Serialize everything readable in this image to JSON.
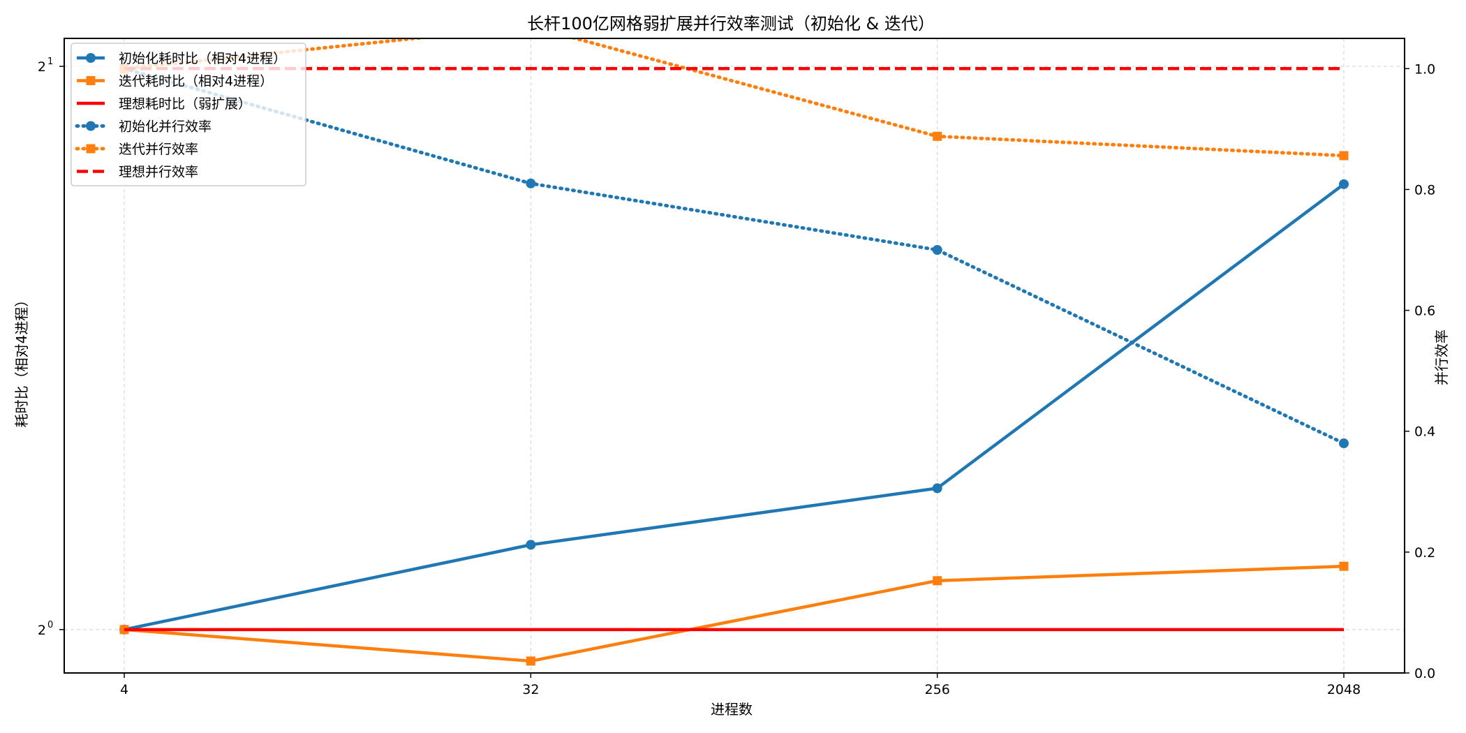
{
  "chart_data": {
    "type": "line",
    "title": "长杆100亿网格弱扩展并行效率测试（初始化 & 迭代）",
    "xlabel": "进程数",
    "ylabel_left": "耗时比（相对4进程）",
    "ylabel_right": "并行效率",
    "x": [
      4,
      32,
      256,
      2048
    ],
    "x_tick_labels": [
      "4",
      "32",
      "256",
      "2048"
    ],
    "x_scale": "log2",
    "y_left_scale": "log2",
    "y_left_range": [
      0.948,
      2.07
    ],
    "y_left_tick_labels": [
      {
        "value": 1,
        "base": "2",
        "exp": "0"
      },
      {
        "value": 2,
        "base": "2",
        "exp": "1"
      }
    ],
    "y_right_range": [
      0.0,
      1.05
    ],
    "y_right_ticks": [
      "0.0",
      "0.2",
      "0.4",
      "0.6",
      "0.8",
      "1.0"
    ],
    "grid": true,
    "legend_position": "top-left",
    "series": [
      {
        "name": "初始化耗时比（相对4进程）",
        "axis": "left",
        "values": [
          1.0,
          1.11,
          1.19,
          1.73
        ],
        "color": "#1f77b4",
        "line": "solid",
        "marker": "circle"
      },
      {
        "name": "迭代耗时比（相对4进程）",
        "axis": "left",
        "values": [
          1.0,
          0.962,
          1.062,
          1.081
        ],
        "color": "#ff7f0e",
        "line": "solid",
        "marker": "square"
      },
      {
        "name": "理想耗时比（弱扩展）",
        "axis": "left",
        "values": [
          1.0,
          1.0,
          1.0,
          1.0
        ],
        "color": "#ff0000",
        "line": "solid",
        "marker": "none"
      },
      {
        "name": "初始化并行效率",
        "axis": "right",
        "values": [
          1.0,
          0.81,
          0.7,
          0.38
        ],
        "color": "#1f77b4",
        "line": "dotted",
        "marker": "circle"
      },
      {
        "name": "迭代并行效率",
        "axis": "right",
        "values": [
          1.0,
          1.07,
          0.888,
          0.856
        ],
        "color": "#ff7f0e",
        "line": "dotted",
        "marker": "square"
      },
      {
        "name": "理想并行效率",
        "axis": "right",
        "values": [
          1.0,
          1.0,
          1.0,
          1.0
        ],
        "color": "#ff0000",
        "line": "dashed",
        "marker": "none"
      }
    ]
  }
}
